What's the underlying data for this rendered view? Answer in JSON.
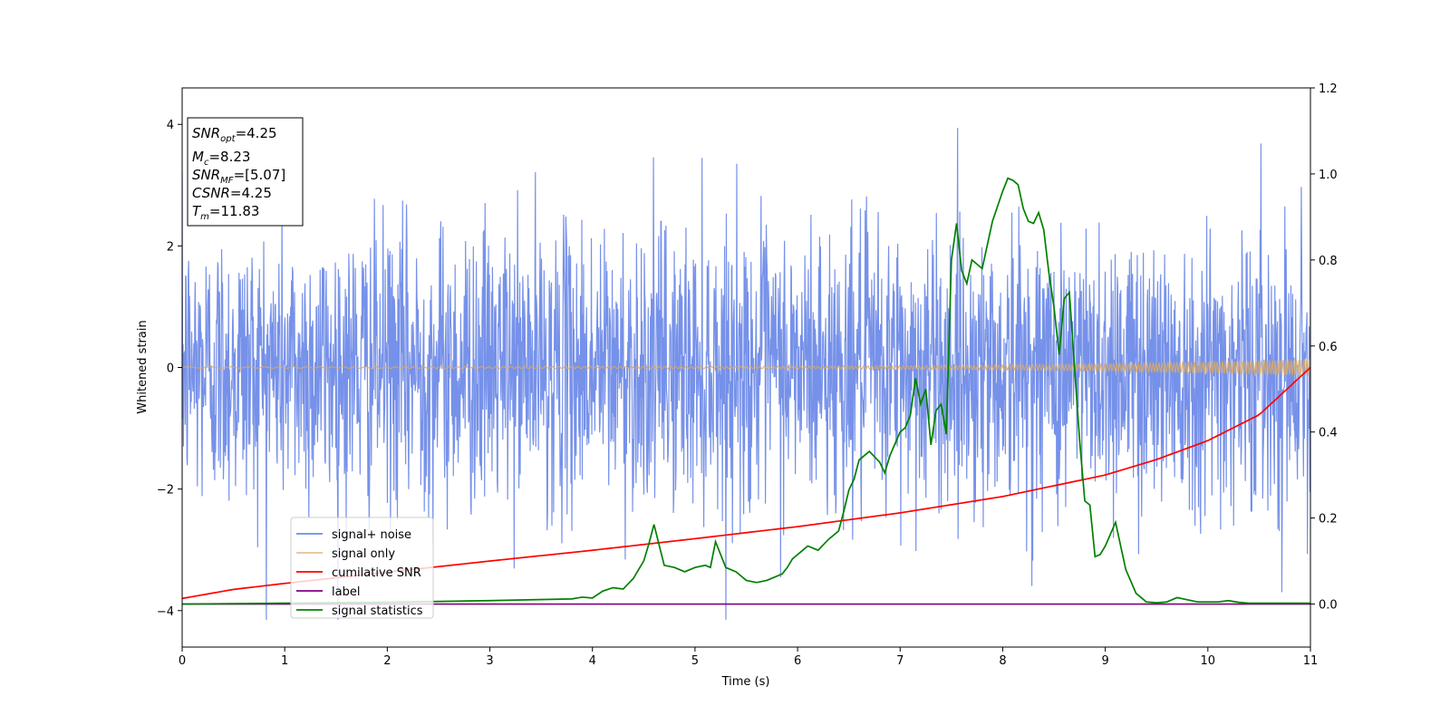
{
  "chart_data": {
    "type": "line",
    "xlabel": "Time (s)",
    "ylabel_left": "Whitened strain",
    "ylabel_right": "",
    "xlim": [
      0,
      11
    ],
    "ylim_left": [
      -4.6,
      4.6
    ],
    "ylim_right": [
      -0.1,
      1.2
    ],
    "xticks": [
      0,
      1,
      2,
      3,
      4,
      5,
      6,
      7,
      8,
      9,
      10,
      11
    ],
    "yticks_left": [
      -4,
      -2,
      0,
      2,
      4
    ],
    "yticks_right": [
      0.0,
      0.2,
      0.4,
      0.6,
      0.8,
      1.0,
      1.2
    ],
    "grid": false,
    "legend_position": "lower-left",
    "info_box": {
      "lines": [
        {
          "base": "SNR",
          "sub": "opt",
          "value": "=4.25"
        },
        {
          "base": "M",
          "sub": "c",
          "value": "=8.23"
        },
        {
          "base": "SNR",
          "sub": "MF",
          "value": "=[5.07]"
        },
        {
          "base": "CSNR",
          "sub": "",
          "value": "=4.25"
        },
        {
          "base": "T",
          "sub": "m",
          "value": "=11.83"
        }
      ]
    },
    "series": [
      {
        "name": "signal+ noise",
        "color": "#6f8be8",
        "axis": "left",
        "kind": "noise",
        "amplitude_range": [
          -4.15,
          4.15
        ]
      },
      {
        "name": "signal only",
        "color": "#d7a96b",
        "axis": "left",
        "kind": "chirp",
        "envelope": {
          "x": [
            0,
            6,
            8,
            9,
            10,
            11
          ],
          "y": [
            0.01,
            0.02,
            0.04,
            0.06,
            0.09,
            0.13
          ]
        }
      },
      {
        "name": "cumilative SNR",
        "color": "#ff0000",
        "axis": "right",
        "x": [
          0,
          0.5,
          1,
          2,
          3,
          4,
          5,
          6,
          7,
          8,
          9,
          9.5,
          10,
          10.5,
          11
        ],
        "y": [
          0.013,
          0.034,
          0.048,
          0.074,
          0.1,
          0.125,
          0.152,
          0.18,
          0.212,
          0.25,
          0.3,
          0.336,
          0.38,
          0.44,
          0.55
        ]
      },
      {
        "name": "label",
        "color": "#800080",
        "axis": "right",
        "x": [
          0,
          11
        ],
        "y": [
          0.0,
          0.0
        ]
      },
      {
        "name": "signal statistics",
        "color": "#008000",
        "axis": "right",
        "x": [
          0,
          1,
          2,
          3,
          3.8,
          3.9,
          4.0,
          4.1,
          4.2,
          4.3,
          4.4,
          4.5,
          4.55,
          4.6,
          4.7,
          4.8,
          4.9,
          5.0,
          5.1,
          5.15,
          5.2,
          5.3,
          5.4,
          5.5,
          5.6,
          5.7,
          5.8,
          5.85,
          5.9,
          5.95,
          6.0,
          6.1,
          6.2,
          6.3,
          6.4,
          6.45,
          6.5,
          6.55,
          6.6,
          6.7,
          6.8,
          6.85,
          6.9,
          7.0,
          7.05,
          7.1,
          7.15,
          7.2,
          7.25,
          7.3,
          7.35,
          7.4,
          7.45,
          7.5,
          7.55,
          7.6,
          7.65,
          7.7,
          7.8,
          7.9,
          8.0,
          8.05,
          8.1,
          8.15,
          8.2,
          8.25,
          8.3,
          8.35,
          8.4,
          8.45,
          8.5,
          8.55,
          8.6,
          8.65,
          8.7,
          8.75,
          8.8,
          8.85,
          8.9,
          8.95,
          9.0,
          9.1,
          9.2,
          9.3,
          9.4,
          9.5,
          9.6,
          9.7,
          9.8,
          9.9,
          10.0,
          10.1,
          10.2,
          10.3,
          10.4,
          11
        ],
        "y": [
          0.0,
          0.002,
          0.004,
          0.008,
          0.012,
          0.016,
          0.014,
          0.03,
          0.038,
          0.035,
          0.06,
          0.1,
          0.14,
          0.185,
          0.09,
          0.085,
          0.075,
          0.085,
          0.09,
          0.085,
          0.145,
          0.085,
          0.075,
          0.055,
          0.05,
          0.055,
          0.065,
          0.07,
          0.085,
          0.105,
          0.115,
          0.135,
          0.125,
          0.15,
          0.17,
          0.215,
          0.265,
          0.29,
          0.335,
          0.355,
          0.33,
          0.305,
          0.345,
          0.4,
          0.41,
          0.44,
          0.525,
          0.465,
          0.5,
          0.37,
          0.45,
          0.465,
          0.395,
          0.8,
          0.885,
          0.775,
          0.745,
          0.8,
          0.78,
          0.89,
          0.96,
          0.99,
          0.985,
          0.975,
          0.92,
          0.89,
          0.885,
          0.91,
          0.87,
          0.77,
          0.69,
          0.58,
          0.71,
          0.725,
          0.55,
          0.38,
          0.24,
          0.23,
          0.11,
          0.115,
          0.135,
          0.19,
          0.08,
          0.025,
          0.005,
          0.003,
          0.005,
          0.015,
          0.01,
          0.005,
          0.005,
          0.005,
          0.008,
          0.004,
          0.002,
          0.002
        ]
      }
    ]
  }
}
